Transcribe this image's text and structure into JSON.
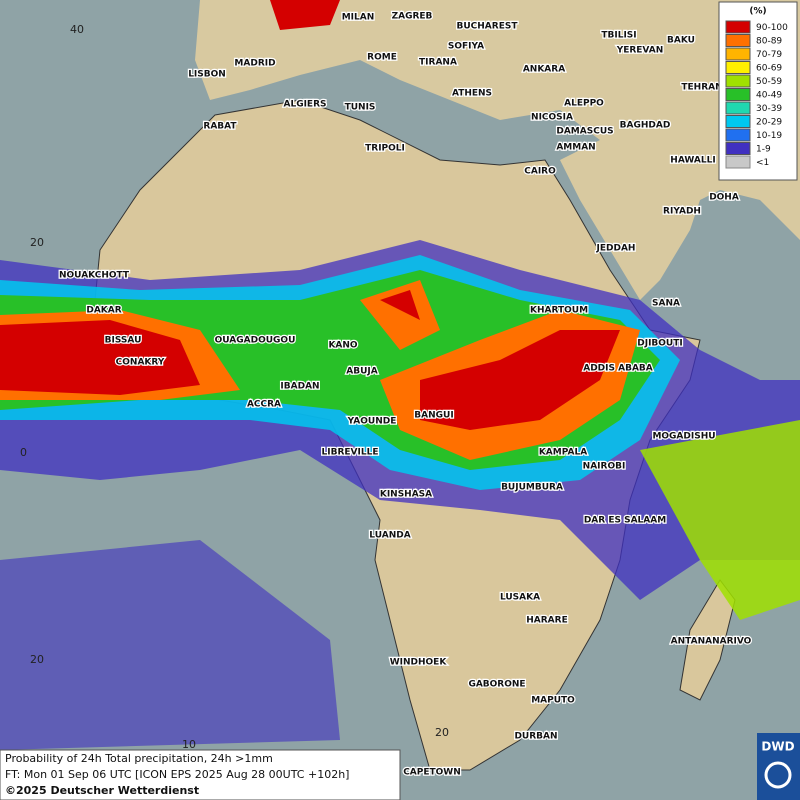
{
  "map": {
    "cities": [
      "MILAN",
      "ZAGREB",
      "BUCHAREST",
      "TBILISI",
      "BAKU",
      "SOFIYA",
      "YEREVAN",
      "LISBON",
      "MADRID",
      "ROME",
      "TIRANA",
      "ANKARA",
      "TEHRAN",
      "ATHENS",
      "ALGIERS",
      "TUNIS",
      "ALEPPO",
      "RABAT",
      "NICOSIA",
      "BAGHDAD",
      "TRIPOLI",
      "DAMASCUS",
      "AMMAN",
      "HAWALLI",
      "CAIRO",
      "DOHA",
      "RIYADH",
      "JEDDAH",
      "NOUAKCHOTT",
      "SANA",
      "DAKAR",
      "KHARTOUM",
      "BISSAU",
      "OUAGADOUGOU",
      "KANO",
      "DJIBOUTI",
      "CONAKRY",
      "ABUJA",
      "ADDIS ABABA",
      "IBADAN",
      "ACCRA",
      "BANGUI",
      "YAOUNDE",
      "MOGADISHU",
      "LIBREVILLE",
      "KAMPALA",
      "NAIROBI",
      "KINSHASA",
      "BUJUMBURA",
      "DAR ES SALAAM",
      "LUANDA",
      "LUSAKA",
      "HARARE",
      "ANTANANARIVO",
      "WINDHOEK",
      "GABORONE",
      "MAPUTO",
      "DURBAN",
      "CAPETOWN"
    ],
    "lat_labels": [
      "40",
      "20",
      "0",
      "20"
    ],
    "lon_labels": [
      "10",
      "20"
    ],
    "legend": {
      "title": "(%)",
      "items": [
        {
          "label": "90-100",
          "color": "#d40000"
        },
        {
          "label": "80-89",
          "color": "#ff7000"
        },
        {
          "label": "70-79",
          "color": "#ffb400"
        },
        {
          "label": "60-69",
          "color": "#fff000"
        },
        {
          "label": "50-59",
          "color": "#a0e000"
        },
        {
          "label": "40-49",
          "color": "#28c028"
        },
        {
          "label": "30-39",
          "color": "#20d8b0"
        },
        {
          "label": "20-29",
          "color": "#00c8f0"
        },
        {
          "label": "10-19",
          "color": "#2070f0"
        },
        {
          "label": "1-9",
          "color": "#4030c0"
        },
        {
          "label": "<1",
          "color": "#c8c8c8"
        }
      ]
    },
    "footer": {
      "line1": "Probability of 24h Total precipitation, 24h >1mm",
      "line2": "FT: Mon 01 Sep 06 UTC [ICON EPS 2025 Aug 28 00UTC +102h]",
      "line3": "©2025 Deutscher Wetterdienst"
    },
    "logo": "DWD"
  }
}
